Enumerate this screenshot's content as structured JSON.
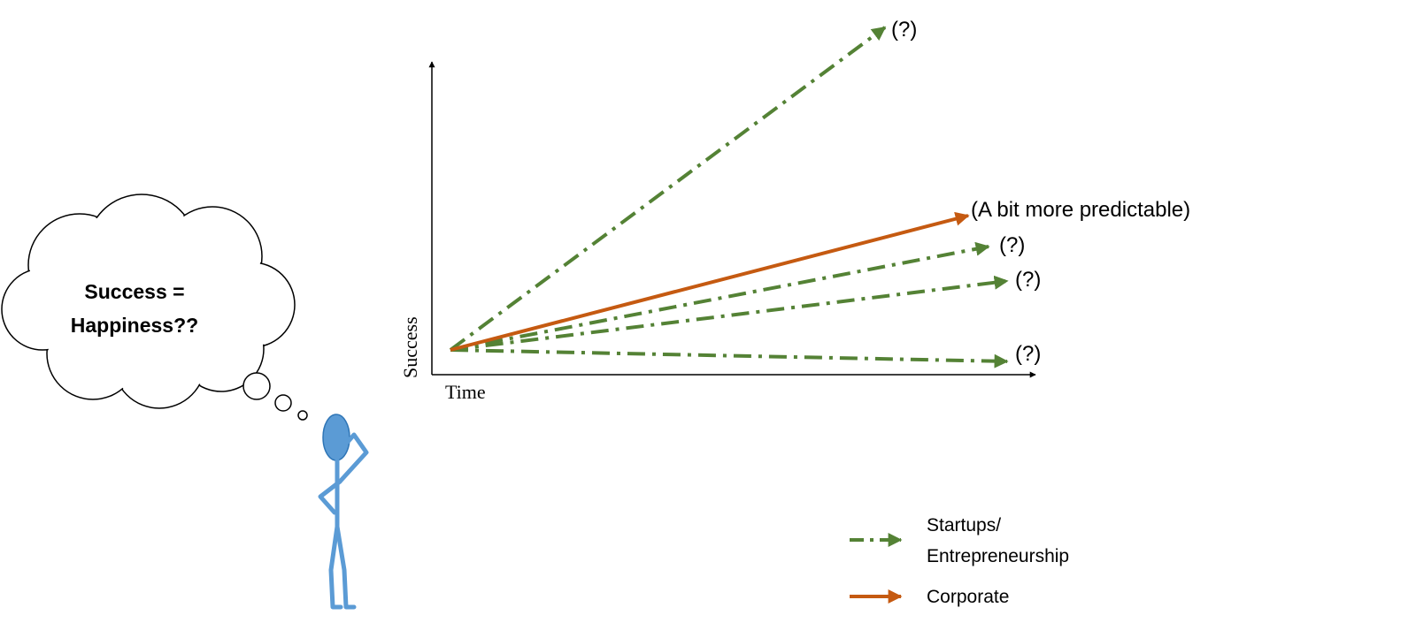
{
  "thought_bubble": {
    "line1": "Success =",
    "line2": "Happiness??"
  },
  "axes": {
    "xlabel": "Time",
    "ylabel": "Success"
  },
  "paths": [
    {
      "series": "startups",
      "label": "(?)"
    },
    {
      "series": "corporate",
      "label": "(A bit more predictable)"
    },
    {
      "series": "startups",
      "label": "(?)"
    },
    {
      "series": "startups",
      "label": "(?)"
    },
    {
      "series": "startups",
      "label": "(?)"
    }
  ],
  "legend": {
    "startups_line1": "Startups/",
    "startups_line2": "Entrepreneurship",
    "corporate": "Corporate"
  },
  "colors": {
    "startups": "#548235",
    "corporate": "#C55A11",
    "figure": "#5B9BD5",
    "figure_outline": "#2E75B6",
    "axis": "#000000"
  }
}
